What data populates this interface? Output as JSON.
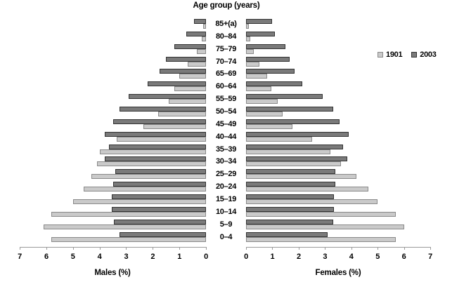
{
  "title": "Age group (years)",
  "legend": {
    "items": [
      {
        "label": "1901",
        "year": "1901"
      },
      {
        "label": "2003",
        "year": "2003"
      }
    ]
  },
  "left_axis": {
    "label": "Males (%)",
    "ticks": [
      "7",
      "6",
      "5",
      "4",
      "3",
      "2",
      "1",
      "0"
    ]
  },
  "right_axis": {
    "label": "Females (%)",
    "ticks": [
      "0",
      "1",
      "2",
      "3",
      "4",
      "5",
      "6",
      "7"
    ]
  },
  "colors": {
    "1901": {
      "fill": "#cacaca",
      "border": "#8a8a8a"
    },
    "2003": {
      "fill": "#7a7a7a",
      "border": "#333333"
    },
    "axis": "#9a9a9a",
    "text": "#000000"
  },
  "chart_data": {
    "type": "bar",
    "subtype": "population_pyramid",
    "title": "Age group (years)",
    "unit": "% of total population",
    "xlim": [
      0,
      7
    ],
    "grid": false,
    "legend_position": "upper-right",
    "row_order_top_to_bottom": "oldest-first",
    "categories": [
      "0–4",
      "5–9",
      "10–14",
      "15–19",
      "20–24",
      "25–29",
      "30–34",
      "35–39",
      "40–44",
      "45–49",
      "50–54",
      "55–59",
      "60–64",
      "65–69",
      "70–74",
      "75–79",
      "80–84",
      "85+(a)"
    ],
    "series": [
      {
        "name": "Males 1901",
        "side": "males",
        "year": "1901",
        "values": [
          5.8,
          6.1,
          5.8,
          5.0,
          4.6,
          4.3,
          4.1,
          4.0,
          3.35,
          2.35,
          1.8,
          1.4,
          1.2,
          1.0,
          0.7,
          0.35,
          0.15,
          0.1
        ]
      },
      {
        "name": "Males 2003",
        "side": "males",
        "year": "2003",
        "values": [
          3.25,
          3.45,
          3.55,
          3.55,
          3.5,
          3.4,
          3.8,
          3.65,
          3.8,
          3.5,
          3.25,
          2.9,
          2.2,
          1.75,
          1.5,
          1.2,
          0.75,
          0.45
        ]
      },
      {
        "name": "Females 1901",
        "side": "females",
        "year": "1901",
        "values": [
          5.7,
          6.0,
          5.7,
          5.0,
          4.65,
          4.2,
          3.6,
          3.2,
          2.5,
          1.75,
          1.4,
          1.2,
          0.95,
          0.8,
          0.5,
          0.3,
          0.15,
          0.1
        ]
      },
      {
        "name": "Females 2003",
        "side": "females",
        "year": "2003",
        "values": [
          3.1,
          3.3,
          3.35,
          3.35,
          3.4,
          3.4,
          3.85,
          3.7,
          3.9,
          3.55,
          3.3,
          2.9,
          2.15,
          1.85,
          1.65,
          1.5,
          1.1,
          1.0
        ]
      }
    ]
  }
}
